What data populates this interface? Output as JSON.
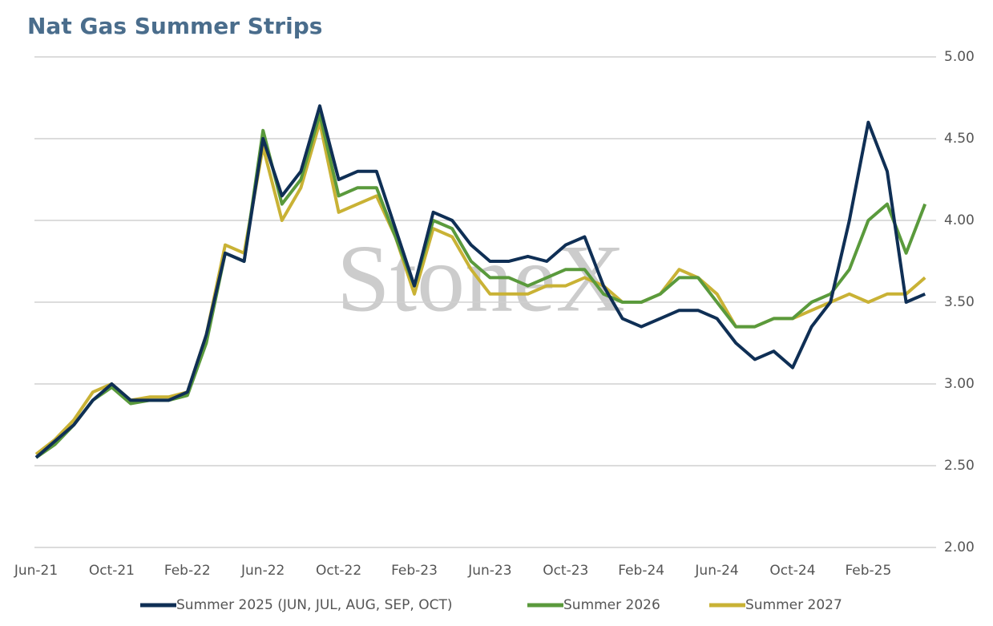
{
  "chart_data": {
    "type": "line",
    "title": "Nat Gas Summer Strips",
    "watermark": "StoneX",
    "categories": [
      "Jun-21",
      null,
      null,
      null,
      "Oct-21",
      null,
      null,
      null,
      "Feb-22",
      null,
      null,
      null,
      "Jun-22",
      null,
      null,
      null,
      "Oct-22",
      null,
      null,
      null,
      "Feb-23",
      null,
      null,
      null,
      "Jun-23",
      null,
      null,
      null,
      "Oct-23",
      null,
      null,
      null,
      "Feb-24",
      null,
      null,
      null,
      "Jun-24",
      null,
      null,
      null,
      "Oct-24",
      null,
      null,
      null,
      "Feb-25",
      null,
      null,
      null
    ],
    "series": [
      {
        "name": "Summer 2025 (JUN, JUL, AUG, SEP, OCT)",
        "color": "#0f2f55",
        "values": [
          2.55,
          2.65,
          2.75,
          2.9,
          3.0,
          2.9,
          2.9,
          2.9,
          2.95,
          3.3,
          3.8,
          3.75,
          4.5,
          4.15,
          4.3,
          4.7,
          4.25,
          4.3,
          4.3,
          3.95,
          3.6,
          4.05,
          4.0,
          3.85,
          3.75,
          3.75,
          3.78,
          3.75,
          3.85,
          3.9,
          3.6,
          3.4,
          3.35,
          3.4,
          3.45,
          3.45,
          3.4,
          3.25,
          3.15,
          3.2,
          3.1,
          3.35,
          3.5,
          4.0,
          4.6,
          4.3,
          3.5,
          3.55
        ]
      },
      {
        "name": "Summer 2026",
        "color": "#5a9a3c",
        "values": [
          2.55,
          2.63,
          2.75,
          2.9,
          2.98,
          2.88,
          2.9,
          2.9,
          2.93,
          3.25,
          3.8,
          3.75,
          4.55,
          4.1,
          4.25,
          4.65,
          4.15,
          4.2,
          4.2,
          3.9,
          3.6,
          4.0,
          3.95,
          3.75,
          3.65,
          3.65,
          3.6,
          3.65,
          3.7,
          3.7,
          3.55,
          3.5,
          3.5,
          3.55,
          3.65,
          3.65,
          3.5,
          3.35,
          3.35,
          3.4,
          3.4,
          3.5,
          3.55,
          3.7,
          4.0,
          4.1,
          3.8,
          4.1
        ]
      },
      {
        "name": "Summer 2027",
        "color": "#c9b235",
        "values": [
          2.57,
          2.66,
          2.78,
          2.95,
          3.0,
          2.9,
          2.92,
          2.92,
          2.95,
          3.3,
          3.85,
          3.8,
          4.45,
          4.0,
          4.2,
          4.6,
          4.05,
          4.1,
          4.15,
          3.9,
          3.55,
          3.95,
          3.9,
          3.7,
          3.55,
          3.55,
          3.55,
          3.6,
          3.6,
          3.65,
          3.6,
          3.5,
          3.5,
          3.55,
          3.7,
          3.65,
          3.55,
          3.35,
          3.35,
          3.4,
          3.4,
          3.45,
          3.5,
          3.55,
          3.5,
          3.55,
          3.55,
          3.65
        ]
      }
    ],
    "ylim": [
      2,
      5
    ],
    "yticks": [
      {
        "value": 2,
        "label": "2.00"
      },
      {
        "value": 2.5,
        "label": "2.50"
      },
      {
        "value": 3,
        "label": "3.00"
      },
      {
        "value": 3.5,
        "label": "3.50"
      },
      {
        "value": 4,
        "label": "4.00"
      },
      {
        "value": 4.5,
        "label": "4.50"
      },
      {
        "value": 5,
        "label": "5.00"
      }
    ],
    "grid": true
  }
}
